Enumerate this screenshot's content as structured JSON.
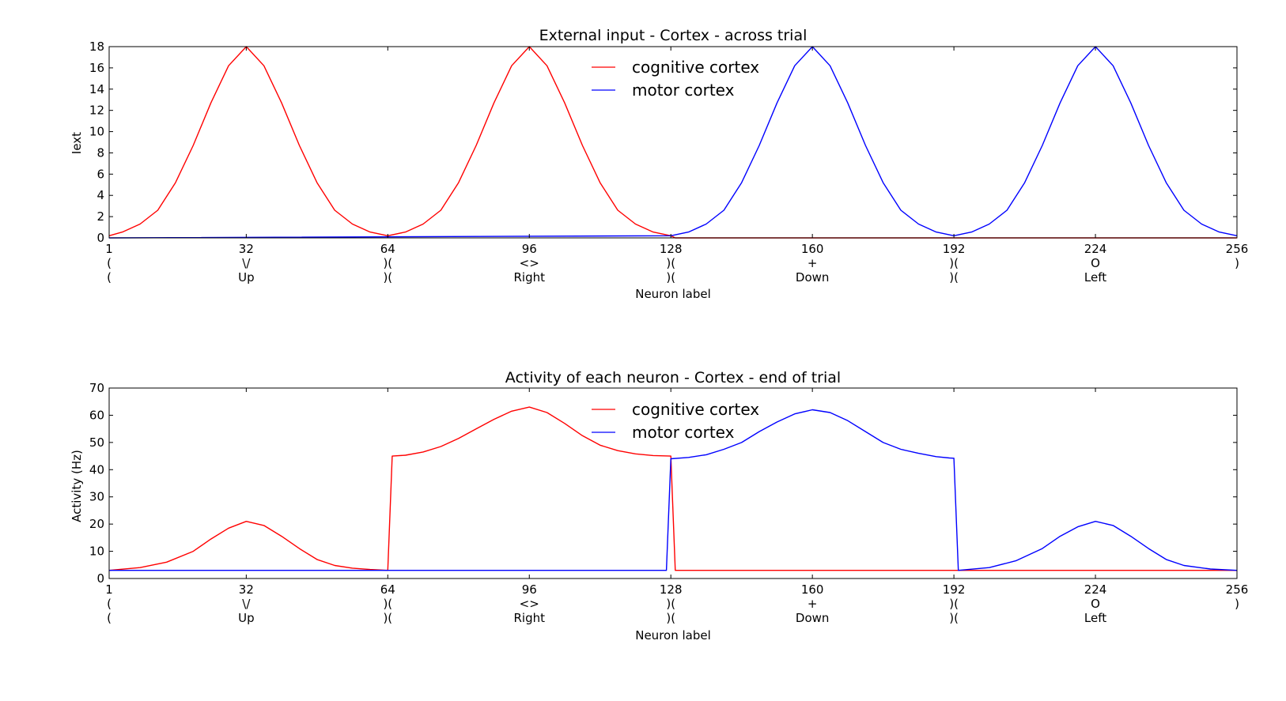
{
  "chart_data": [
    {
      "type": "line",
      "title": "External input - Cortex - across trial",
      "xlabel": "Neuron label",
      "ylabel": "Iext",
      "xlim": [
        1,
        256
      ],
      "ylim": [
        0,
        18
      ],
      "yticks": [
        "0",
        "2",
        "4",
        "6",
        "8",
        "10",
        "12",
        "14",
        "16",
        "18"
      ],
      "xticks": [
        {
          "value": 1,
          "lines": [
            "1",
            "(",
            "("
          ]
        },
        {
          "value": 32,
          "lines": [
            "32",
            "\\/",
            "Up"
          ]
        },
        {
          "value": 64,
          "lines": [
            "64",
            ")(",
            ")("
          ]
        },
        {
          "value": 96,
          "lines": [
            "96",
            "<>",
            "Right"
          ]
        },
        {
          "value": 128,
          "lines": [
            "128",
            ")(",
            ")("
          ]
        },
        {
          "value": 160,
          "lines": [
            "160",
            "+",
            "Down"
          ]
        },
        {
          "value": 192,
          "lines": [
            "192",
            ")(",
            ")("
          ]
        },
        {
          "value": 224,
          "lines": [
            "224",
            "O",
            "Left"
          ]
        },
        {
          "value": 256,
          "lines": [
            "256",
            ")",
            ""
          ]
        }
      ],
      "legend_position": "top-center",
      "series": [
        {
          "name": "cognitive cortex",
          "color": "#ff0000",
          "x": [
            1,
            4,
            8,
            12,
            16,
            20,
            24,
            28,
            32,
            36,
            40,
            44,
            48,
            52,
            56,
            60,
            64,
            68,
            72,
            76,
            80,
            84,
            88,
            92,
            96,
            100,
            104,
            108,
            112,
            116,
            120,
            124,
            128,
            129,
            256
          ],
          "y": [
            0.2,
            0.55,
            1.3,
            2.6,
            5.2,
            8.7,
            12.7,
            16.2,
            18.0,
            16.2,
            12.7,
            8.7,
            5.2,
            2.6,
            1.3,
            0.55,
            0.2,
            0.55,
            1.3,
            2.6,
            5.2,
            8.7,
            12.7,
            16.2,
            18.0,
            16.2,
            12.7,
            8.7,
            5.2,
            2.6,
            1.3,
            0.55,
            0.2,
            0.0,
            0.0
          ]
        },
        {
          "name": "motor cortex",
          "color": "#0000ff",
          "x": [
            1,
            128,
            132,
            136,
            140,
            144,
            148,
            152,
            156,
            160,
            164,
            168,
            172,
            176,
            180,
            184,
            188,
            192,
            196,
            200,
            204,
            208,
            212,
            216,
            220,
            224,
            228,
            232,
            236,
            240,
            244,
            248,
            252,
            256
          ],
          "y": [
            0.0,
            0.2,
            0.55,
            1.3,
            2.6,
            5.2,
            8.7,
            12.7,
            16.2,
            18.0,
            16.2,
            12.7,
            8.7,
            5.2,
            2.6,
            1.3,
            0.55,
            0.2,
            0.55,
            1.3,
            2.6,
            5.2,
            8.7,
            12.7,
            16.2,
            18.0,
            16.2,
            12.7,
            8.7,
            5.2,
            2.6,
            1.3,
            0.55,
            0.2
          ]
        }
      ]
    },
    {
      "type": "line",
      "title": "Activity of each neuron - Cortex - end of trial",
      "xlabel": "Neuron label",
      "ylabel": "Activity (Hz)",
      "xlim": [
        1,
        256
      ],
      "ylim": [
        0,
        70
      ],
      "yticks": [
        "0",
        "10",
        "20",
        "30",
        "40",
        "50",
        "60",
        "70"
      ],
      "xticks": [
        {
          "value": 1,
          "lines": [
            "1",
            "(",
            "("
          ]
        },
        {
          "value": 32,
          "lines": [
            "32",
            "\\/",
            "Up"
          ]
        },
        {
          "value": 64,
          "lines": [
            "64",
            ")(",
            ")("
          ]
        },
        {
          "value": 96,
          "lines": [
            "96",
            "<>",
            "Right"
          ]
        },
        {
          "value": 128,
          "lines": [
            "128",
            ")(",
            ")("
          ]
        },
        {
          "value": 160,
          "lines": [
            "160",
            "+",
            "Down"
          ]
        },
        {
          "value": 192,
          "lines": [
            "192",
            ")(",
            ")("
          ]
        },
        {
          "value": 224,
          "lines": [
            "224",
            "O",
            "Left"
          ]
        },
        {
          "value": 256,
          "lines": [
            "256",
            ")",
            ""
          ]
        }
      ],
      "legend_position": "top-center",
      "series": [
        {
          "name": "cognitive cortex",
          "color": "#ff0000",
          "x": [
            1,
            8,
            14,
            20,
            24,
            28,
            32,
            36,
            40,
            44,
            48,
            52,
            56,
            60,
            64,
            65,
            68,
            72,
            76,
            80,
            84,
            88,
            92,
            96,
            100,
            104,
            108,
            112,
            116,
            120,
            124,
            128,
            129,
            256
          ],
          "y": [
            3.0,
            4.0,
            6.0,
            10.0,
            14.5,
            18.5,
            21.0,
            19.5,
            15.5,
            11.0,
            7.0,
            4.8,
            3.8,
            3.3,
            3.0,
            45.0,
            45.3,
            46.5,
            48.5,
            51.5,
            55.0,
            58.5,
            61.5,
            63.0,
            61.0,
            57.0,
            52.5,
            49.0,
            47.0,
            45.8,
            45.2,
            45.0,
            3.0,
            3.0
          ]
        },
        {
          "name": "motor cortex",
          "color": "#0000ff",
          "x": [
            1,
            127,
            128,
            132,
            136,
            140,
            144,
            148,
            152,
            156,
            160,
            164,
            168,
            172,
            176,
            180,
            184,
            188,
            191,
            192,
            193,
            200,
            206,
            212,
            216,
            220,
            224,
            228,
            232,
            236,
            240,
            244,
            250,
            256
          ],
          "y": [
            3.0,
            3.0,
            44.0,
            44.5,
            45.5,
            47.5,
            50.0,
            54.0,
            57.5,
            60.5,
            62.0,
            61.0,
            58.0,
            54.0,
            50.0,
            47.5,
            46.0,
            44.8,
            44.3,
            44.2,
            3.0,
            4.0,
            6.5,
            11.0,
            15.5,
            19.0,
            21.0,
            19.5,
            15.5,
            11.0,
            7.0,
            4.8,
            3.5,
            3.0
          ]
        }
      ]
    }
  ]
}
